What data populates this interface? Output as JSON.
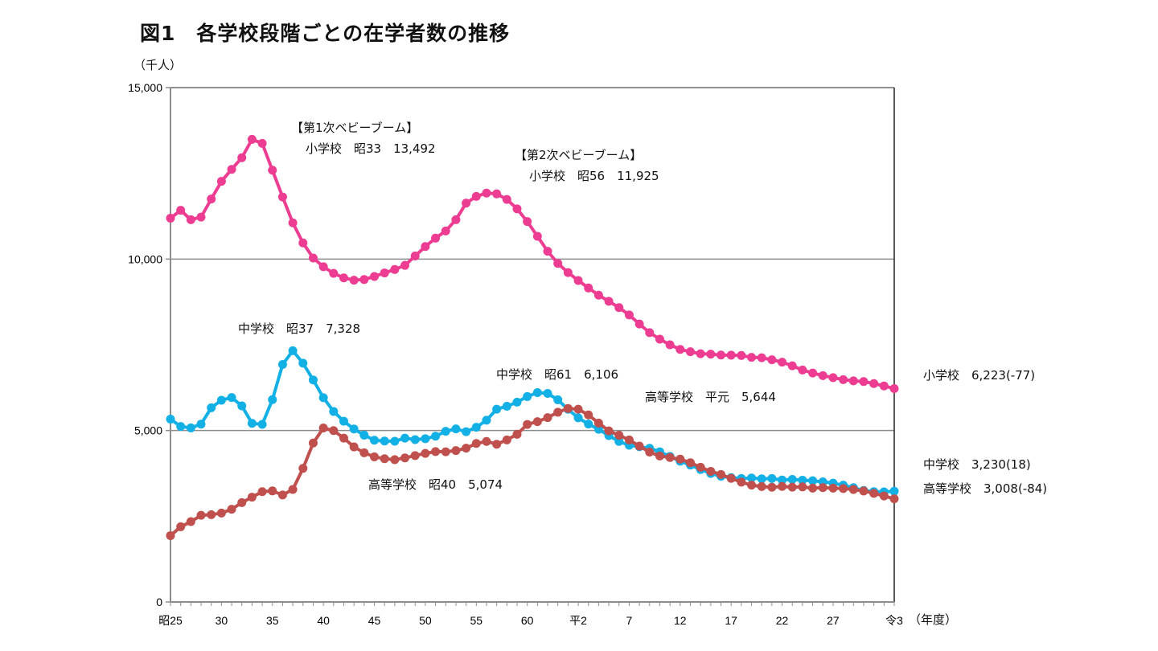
{
  "title": "図1　各学校段階ごとの在学者数の推移",
  "unit": "（千人）",
  "x_unit": "（年度）",
  "colors": {
    "elementary": "#ec3d92",
    "junior_high": "#13b0e6",
    "high_school": "#c0504d",
    "grid": "#8c8c8c"
  },
  "annotations": {
    "boom1_title": "【第1次ベビーブーム】",
    "boom1_value": "小学校　昭33　13,492",
    "boom2_title": "【第2次ベビーブーム】",
    "boom2_value": "小学校　昭56　11,925",
    "jh_peak1": "中学校　昭37　7,328",
    "jh_peak2": "中学校　昭61　6,106",
    "hs_peak1": "高等学校　昭40　5,074",
    "hs_peak2": "高等学校　平元　5,644",
    "end_elementary": "小学校　6,223(-77)",
    "end_junior_high": "中学校　3,230(18)",
    "end_high_school": "高等学校　3,008(-84)"
  },
  "chart_data": {
    "type": "line",
    "title": "図1　各学校段階ごとの在学者数の推移",
    "ylabel": "（千人）",
    "xlabel": "（年度）",
    "ylim": [
      0,
      15000
    ],
    "yticks": [
      0,
      5000,
      10000,
      15000
    ],
    "ytick_labels": [
      "0",
      "5,000",
      "10,000",
      "15,000"
    ],
    "grid": "horizontal",
    "x": [
      1950,
      1951,
      1952,
      1953,
      1954,
      1955,
      1956,
      1957,
      1958,
      1959,
      1960,
      1961,
      1962,
      1963,
      1964,
      1965,
      1966,
      1967,
      1968,
      1969,
      1970,
      1971,
      1972,
      1973,
      1974,
      1975,
      1976,
      1977,
      1978,
      1979,
      1980,
      1981,
      1982,
      1983,
      1984,
      1985,
      1986,
      1987,
      1988,
      1989,
      1990,
      1991,
      1992,
      1993,
      1994,
      1995,
      1996,
      1997,
      1998,
      1999,
      2000,
      2001,
      2002,
      2003,
      2004,
      2005,
      2006,
      2007,
      2008,
      2009,
      2010,
      2011,
      2012,
      2013,
      2014,
      2015,
      2016,
      2017,
      2018,
      2019,
      2020,
      2021
    ],
    "xticks": [
      1950,
      1955,
      1960,
      1965,
      1970,
      1975,
      1980,
      1985,
      1990,
      1995,
      2000,
      2005,
      2010,
      2015,
      2021
    ],
    "xtick_labels": [
      "昭25",
      "30",
      "35",
      "40",
      "45",
      "50",
      "55",
      "60",
      "平2",
      "7",
      "12",
      "17",
      "22",
      "27",
      "令3"
    ],
    "series": [
      {
        "name": "小学校",
        "key": "elementary",
        "values": [
          11191,
          11423,
          11148,
          11225,
          11751,
          12267,
          12616,
          12956,
          13492,
          13375,
          12591,
          11811,
          11057,
          10471,
          10031,
          9776,
          9584,
          9452,
          9383,
          9403,
          9493,
          9596,
          9696,
          9816,
          10089,
          10365,
          10610,
          10819,
          11147,
          11630,
          11827,
          11925,
          11902,
          11740,
          11465,
          11095,
          10665,
          10227,
          9873,
          9607,
          9374,
          9157,
          8948,
          8769,
          8583,
          8370,
          8106,
          7855,
          7664,
          7500,
          7366,
          7297,
          7239,
          7227,
          7201,
          7197,
          7188,
          7133,
          7122,
          7064,
          6993,
          6887,
          6765,
          6677,
          6601,
          6543,
          6483,
          6449,
          6428,
          6369,
          6300,
          6223
        ]
      },
      {
        "name": "中学校",
        "key": "junior_high",
        "values": [
          5333,
          5119,
          5076,
          5187,
          5664,
          5884,
          5963,
          5718,
          5210,
          5180,
          5900,
          6925,
          7328,
          6964,
          6476,
          5957,
          5556,
          5271,
          5044,
          4865,
          4717,
          4694,
          4688,
          4779,
          4735,
          4762,
          4833,
          4977,
          5048,
          4966,
          5094,
          5300,
          5623,
          5706,
          5828,
          5990,
          6106,
          6081,
          5896,
          5619,
          5369,
          5189,
          5037,
          4851,
          4681,
          4570,
          4528,
          4481,
          4381,
          4244,
          4104,
          3992,
          3863,
          3748,
          3664,
          3627,
          3602,
          3615,
          3592,
          3600,
          3558,
          3574,
          3552,
          3536,
          3504,
          3465,
          3406,
          3333,
          3252,
          3218,
          3212,
          3230
        ]
      },
      {
        "name": "高等学校",
        "key": "high_school",
        "values": [
          1935,
          2193,
          2343,
          2528,
          2545,
          2592,
          2703,
          2898,
          3057,
          3216,
          3239,
          3119,
          3282,
          3897,
          4634,
          5074,
          4997,
          4778,
          4522,
          4352,
          4232,
          4178,
          4150,
          4201,
          4270,
          4333,
          4386,
          4381,
          4415,
          4485,
          4622,
          4682,
          4601,
          4726,
          4890,
          5178,
          5259,
          5375,
          5533,
          5644,
          5623,
          5455,
          5218,
          4990,
          4862,
          4725,
          4547,
          4371,
          4258,
          4212,
          4165,
          4062,
          3929,
          3810,
          3719,
          3605,
          3494,
          3407,
          3367,
          3347,
          3369,
          3349,
          3356,
          3320,
          3334,
          3319,
          3309,
          3280,
          3236,
          3168,
          3092,
          3008
        ]
      }
    ]
  }
}
